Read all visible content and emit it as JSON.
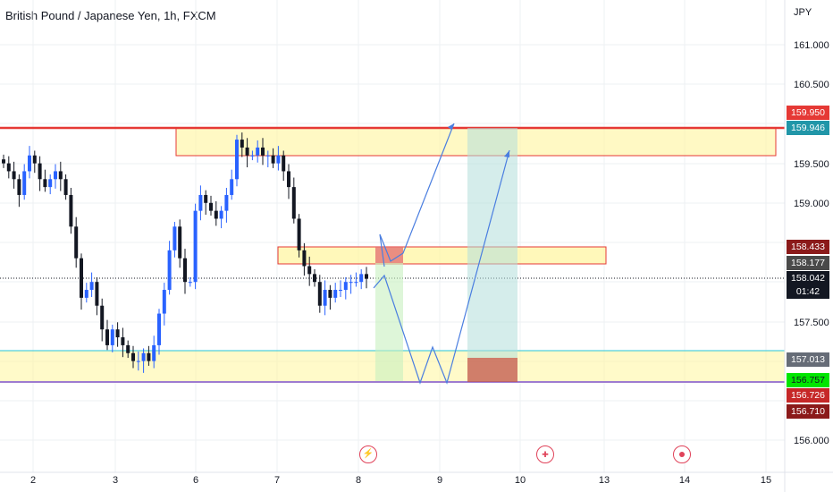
{
  "title": "British Pound / Japanese Yen, 1h, FXCM",
  "currency": "JPY",
  "price_axis": [
    "161.000",
    "160.500",
    "159.500",
    "159.000",
    "157.500",
    "156.000"
  ],
  "time_axis": [
    "2",
    "3",
    "6",
    "7",
    "8",
    "9",
    "10",
    "13",
    "14",
    "15"
  ],
  "tags": {
    "t159950": "159.950",
    "t159946": "159.946",
    "t158433": "158.433",
    "t158177": "158.177",
    "t158042": "158.042",
    "countdown": "01:42",
    "t157013": "157.013",
    "t156757": "156.757",
    "t156726": "156.726",
    "t156710": "156.710"
  },
  "events": [
    "lightning-event-icon",
    "uk-flag-event-icon",
    "target-event-icon"
  ],
  "colors": {
    "up": "#2962ff",
    "down": "#131722",
    "zone_fill": "#fff59d",
    "zone_border": "#e53935",
    "resistance": "#e53935",
    "support": "#26c6da",
    "projection": "#4a7ee0"
  },
  "chart_data": {
    "type": "candlestick",
    "symbol": "GBPJPY",
    "timeframe": "1h",
    "last_price": 158.042,
    "resistance": 159.95,
    "support_zone": [
      156.726,
      157.013
    ],
    "mid_zone": [
      158.177,
      158.433
    ],
    "upper_zone": [
      159.6,
      159.946
    ],
    "ylim": [
      155.8,
      161.25
    ],
    "closes": [
      159.5,
      159.4,
      159.3,
      159.1,
      159.4,
      159.6,
      159.5,
      159.3,
      159.2,
      159.3,
      159.4,
      159.3,
      159.1,
      158.7,
      158.3,
      157.8,
      157.9,
      158.0,
      157.7,
      157.4,
      157.2,
      157.4,
      157.3,
      157.2,
      157.1,
      157.0,
      157.0,
      157.1,
      157.0,
      157.2,
      157.6,
      157.9,
      158.4,
      158.7,
      158.3,
      158.0,
      158.0,
      158.9,
      159.1,
      159.0,
      158.9,
      158.8,
      158.9,
      159.1,
      159.3,
      159.8,
      159.7,
      159.6,
      159.6,
      159.7,
      159.6,
      159.6,
      159.5,
      159.6,
      159.4,
      159.2,
      158.8,
      158.4,
      158.2,
      158.1,
      158.0,
      157.7,
      157.9,
      157.8,
      157.9,
      157.9,
      158.0,
      158.0,
      158.0,
      158.1,
      158.04
    ]
  }
}
